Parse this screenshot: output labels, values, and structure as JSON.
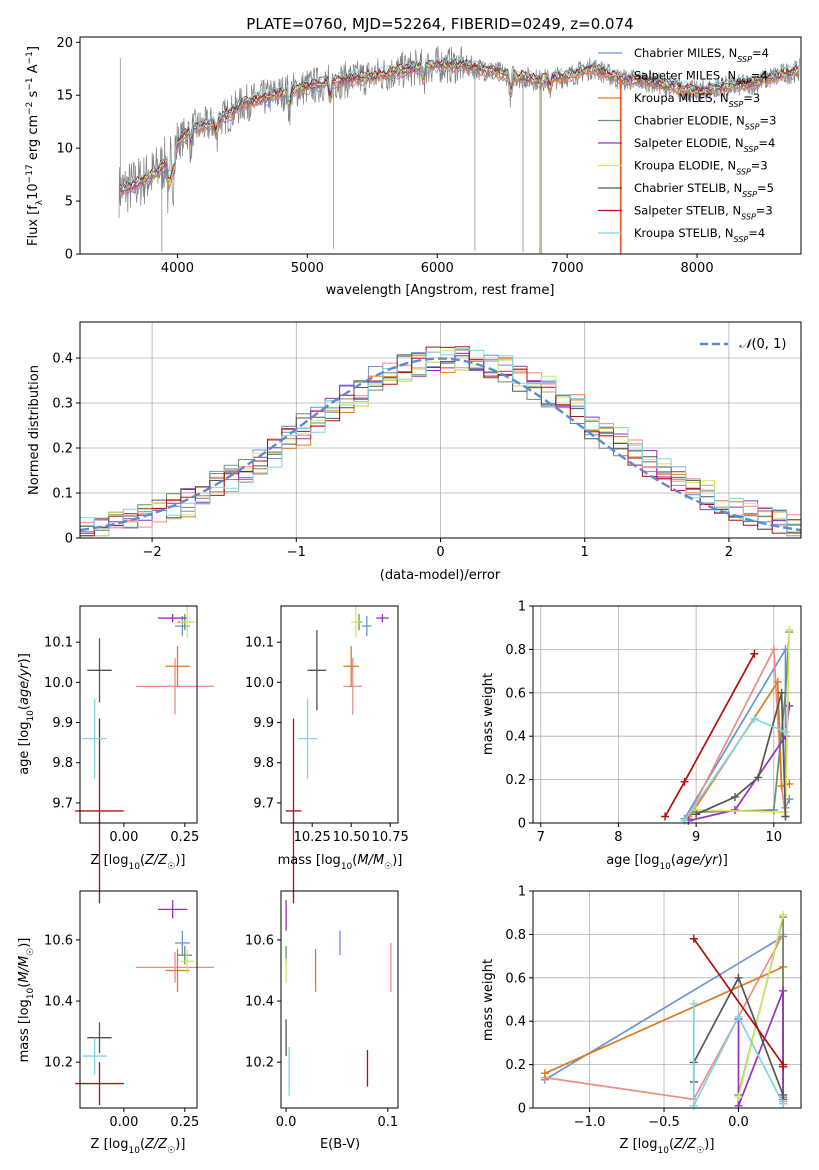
{
  "figure_title": "PLATE=0760, MJD=52264, FIBERID=0249, z=0.074",
  "series_styles": [
    {
      "name": "Chabrier MILES",
      "color": "#6a93d6"
    },
    {
      "name": "Salpeter MILES",
      "color": "#f08c84"
    },
    {
      "name": "Kroupa MILES",
      "color": "#e07a20"
    },
    {
      "name": "Chabrier ELODIE",
      "color": "#6a8f6a"
    },
    {
      "name": "Salpeter ELODIE",
      "color": "#9a2fc0"
    },
    {
      "name": "Kroupa ELODIE",
      "color": "#d4e866"
    },
    {
      "name": "Chabrier STELIB",
      "color": "#555555"
    },
    {
      "name": "Salpeter STELIB",
      "color": "#b01010"
    },
    {
      "name": "Kroupa STELIB",
      "color": "#7fd6e0"
    }
  ],
  "chart_data": [
    {
      "id": "spectrum",
      "type": "line",
      "xlabel": "wavelength [Angstrom, rest frame]",
      "ylabel": "Flux [fλ10⁻¹⁷ erg cm⁻² s⁻¹ A⁻¹]",
      "xlim": [
        3250,
        8800
      ],
      "ylim": [
        0,
        20.5
      ],
      "xticks": [
        4000,
        5000,
        6000,
        7000,
        8000
      ],
      "yticks": [
        0,
        5,
        10,
        15,
        20
      ],
      "data_color": "#808080",
      "continuum_x": [
        3550,
        3650,
        3800,
        3950,
        4000,
        4100,
        4250,
        4400,
        4500,
        4600,
        4800,
        5000,
        5200,
        5400,
        5600,
        5800,
        6000,
        6200,
        6400,
        6600,
        6800,
        7000,
        7200,
        7400,
        7600,
        7800,
        8000,
        8200,
        8400,
        8600,
        8800
      ],
      "continuum_y": [
        6,
        6.4,
        7.4,
        9,
        10.5,
        11.8,
        12.2,
        13.2,
        14.2,
        14.5,
        15.2,
        15.8,
        16.3,
        16.6,
        17,
        17.5,
        17.9,
        17.8,
        17.3,
        16.8,
        16.4,
        16.8,
        17.6,
        16.5,
        16.4,
        15.8,
        15.3,
        15.8,
        16,
        16.8,
        17.4
      ],
      "legend": [
        {
          "label": "Chabrier MILES, N",
          "sub": "SSP",
          "value": "=4",
          "color": "#6a93d6"
        },
        {
          "label": "Salpeter MILES, N",
          "sub": "SSP",
          "value": "=4",
          "color": "#f08c84"
        },
        {
          "label": "Kroupa MILES, N",
          "sub": "SSP",
          "value": "=3",
          "color": "#e07a20"
        },
        {
          "label": "Chabrier ELODIE, N",
          "sub": "SSP",
          "value": "=3",
          "color": "#6a8f6a"
        },
        {
          "label": "Salpeter ELODIE, N",
          "sub": "SSP",
          "value": "=4",
          "color": "#9a2fc0"
        },
        {
          "label": "Kroupa ELODIE, N",
          "sub": "SSP",
          "value": "=3",
          "color": "#d4e866"
        },
        {
          "label": "Chabrier STELIB, N",
          "sub": "SSP",
          "value": "=5",
          "color": "#555555"
        },
        {
          "label": "Salpeter STELIB, N",
          "sub": "SSP",
          "value": "=3",
          "color": "#b01010"
        },
        {
          "label": "Kroupa STELIB, N",
          "sub": "SSP",
          "value": "=4",
          "color": "#7fd6e0"
        }
      ]
    },
    {
      "id": "residuals",
      "type": "histogram",
      "xlabel": "(data-model)/error",
      "ylabel": "Normed distribution",
      "xlim": [
        -2.5,
        2.5
      ],
      "ylim": [
        0,
        0.48
      ],
      "xticks": [
        -2,
        -1,
        0,
        1,
        2
      ],
      "yticks": [
        0,
        0.1,
        0.2,
        0.3,
        0.4
      ],
      "bin_width": 0.1,
      "grid": true,
      "legend": [
        {
          "label": "(0, 1)",
          "color": "#6a93d6",
          "style": "dashed"
        }
      ]
    },
    {
      "id": "age_vs_Z",
      "type": "scatter",
      "xlabel": "Z [log10(Z/Z☉)]",
      "ylabel": "age  [log10(age/yr)]",
      "xlim": [
        -0.18,
        0.3
      ],
      "ylim": [
        9.65,
        10.19
      ],
      "xticks": [
        0,
        0.25
      ],
      "xticklabels": [
        "0.00",
        "0.25"
      ],
      "yticks": [
        9.7,
        9.8,
        9.9,
        10.0,
        10.1
      ],
      "points": [
        {
          "series": "Chabrier MILES",
          "x": 0.24,
          "y": 10.14,
          "xerr": 0.03,
          "yerr": 0.025
        },
        {
          "series": "Salpeter MILES",
          "x": 0.21,
          "y": 9.99,
          "xerr": 0.16,
          "yerr": 0.07
        },
        {
          "series": "Kroupa MILES",
          "x": 0.22,
          "y": 10.04,
          "xerr": 0.05,
          "yerr": 0.05
        },
        {
          "series": "Chabrier ELODIE",
          "x": 0.25,
          "y": 10.15,
          "xerr": 0.03,
          "yerr": 0.02
        },
        {
          "series": "Salpeter ELODIE",
          "x": 0.2,
          "y": 10.16,
          "xerr": 0.06,
          "yerr": 0.01
        },
        {
          "series": "Kroupa ELODIE",
          "x": 0.26,
          "y": 10.15,
          "xerr": 0.03,
          "yerr": 0.04
        },
        {
          "series": "Chabrier STELIB",
          "x": -0.1,
          "y": 10.03,
          "xerr": 0.05,
          "yerr": 0.08
        },
        {
          "series": "Salpeter STELIB",
          "x": -0.1,
          "y": 9.68,
          "xerr": 0.1,
          "yerr": 0.23
        },
        {
          "series": "Kroupa STELIB",
          "x": -0.12,
          "y": 9.86,
          "xerr": 0.05,
          "yerr": 0.1
        }
      ]
    },
    {
      "id": "age_vs_mass",
      "type": "scatter",
      "xlabel": "mass [log10(M/M☉)]",
      "ylabel": "",
      "xlim": [
        10.05,
        10.8
      ],
      "ylim": [
        9.65,
        10.19
      ],
      "xticks": [
        10.25,
        10.5,
        10.75
      ],
      "xticklabels": [
        "10.25",
        "10.50",
        "10.75"
      ],
      "yticks": [
        9.7,
        9.8,
        9.9,
        10.0,
        10.1
      ],
      "points": [
        {
          "series": "Chabrier MILES",
          "x": 10.6,
          "y": 10.14,
          "xerr": 0.03,
          "yerr": 0.025
        },
        {
          "series": "Salpeter MILES",
          "x": 10.51,
          "y": 9.99,
          "xerr": 0.06,
          "yerr": 0.07
        },
        {
          "series": "Kroupa MILES",
          "x": 10.5,
          "y": 10.04,
          "xerr": 0.05,
          "yerr": 0.05
        },
        {
          "series": "Chabrier ELODIE",
          "x": 10.55,
          "y": 10.15,
          "xerr": 0.02,
          "yerr": 0.02
        },
        {
          "series": "Salpeter ELODIE",
          "x": 10.7,
          "y": 10.16,
          "xerr": 0.04,
          "yerr": 0.01
        },
        {
          "series": "Kroupa ELODIE",
          "x": 10.53,
          "y": 10.15,
          "xerr": 0.03,
          "yerr": 0.04
        },
        {
          "series": "Chabrier STELIB",
          "x": 10.28,
          "y": 10.03,
          "xerr": 0.06,
          "yerr": 0.1
        },
        {
          "series": "Salpeter STELIB",
          "x": 10.13,
          "y": 9.68,
          "xerr": 0.05,
          "yerr": 0.23
        },
        {
          "series": "Kroupa STELIB",
          "x": 10.22,
          "y": 9.86,
          "xerr": 0.06,
          "yerr": 0.1
        }
      ]
    },
    {
      "id": "weight_vs_age",
      "type": "line",
      "xlabel": "age  [log10(age/yr)]",
      "ylabel": "mass weight",
      "xlim": [
        6.9,
        10.35
      ],
      "ylim": [
        0,
        1
      ],
      "xticks": [
        7,
        8,
        9,
        10
      ],
      "yticks": [
        0,
        0.2,
        0.4,
        0.6,
        0.8,
        1.0
      ],
      "grid": true,
      "series": [
        {
          "name": "Chabrier MILES",
          "x": [
            8.85,
            10.15,
            10.15,
            10.2
          ],
          "y": [
            0.02,
            0.8,
            0.07,
            0.11
          ]
        },
        {
          "name": "Salpeter MILES",
          "x": [
            8.9,
            10.0,
            10.1,
            10.15
          ],
          "y": [
            0.03,
            0.8,
            0.17,
            0.03
          ]
        },
        {
          "name": "Kroupa MILES",
          "x": [
            8.9,
            10.05,
            10.1,
            10.2
          ],
          "y": [
            0.02,
            0.65,
            0.17,
            0.18
          ]
        },
        {
          "name": "Chabrier ELODIE",
          "x": [
            9.0,
            10.0,
            10.15,
            10.2
          ],
          "y": [
            0.05,
            0.06,
            0.6,
            0.88
          ]
        },
        {
          "name": "Salpeter ELODIE",
          "x": [
            8.9,
            9.5,
            10.15,
            10.2
          ],
          "y": [
            0.01,
            0.06,
            0.4,
            0.54
          ]
        },
        {
          "name": "Kroupa ELODIE",
          "x": [
            9.0,
            10.15,
            10.2
          ],
          "y": [
            0.06,
            0.05,
            0.89
          ]
        },
        {
          "name": "Chabrier STELIB",
          "x": [
            9.0,
            9.5,
            9.8,
            10.1,
            10.15
          ],
          "y": [
            0.04,
            0.12,
            0.21,
            0.6,
            0.03
          ]
        },
        {
          "name": "Salpeter STELIB",
          "x": [
            8.6,
            8.85,
            9.75
          ],
          "y": [
            0.03,
            0.19,
            0.78
          ]
        },
        {
          "name": "Kroupa STELIB",
          "x": [
            8.85,
            9.75,
            10.15
          ],
          "y": [
            0.01,
            0.48,
            0.42
          ]
        }
      ]
    },
    {
      "id": "mass_vs_Z",
      "type": "scatter",
      "xlabel": "Z [log10(Z/Z☉)]",
      "ylabel": "mass [log10(M/M☉)]",
      "xlim": [
        -0.18,
        0.3
      ],
      "ylim": [
        10.05,
        10.76
      ],
      "xticks": [
        0,
        0.25
      ],
      "xticklabels": [
        "0.00",
        "0.25"
      ],
      "yticks": [
        10.2,
        10.4,
        10.6
      ],
      "points": [
        {
          "series": "Chabrier MILES",
          "x": 0.24,
          "y": 10.59,
          "xerr": 0.03,
          "yerr": 0.04
        },
        {
          "series": "Salpeter MILES",
          "x": 0.21,
          "y": 10.51,
          "xerr": 0.16,
          "yerr": 0.05
        },
        {
          "series": "Kroupa MILES",
          "x": 0.22,
          "y": 10.5,
          "xerr": 0.05,
          "yerr": 0.07
        },
        {
          "series": "Chabrier ELODIE",
          "x": 0.25,
          "y": 10.55,
          "xerr": 0.03,
          "yerr": 0.03
        },
        {
          "series": "Salpeter ELODIE",
          "x": 0.2,
          "y": 10.7,
          "xerr": 0.06,
          "yerr": 0.03
        },
        {
          "series": "Kroupa ELODIE",
          "x": 0.26,
          "y": 10.53,
          "xerr": 0.03,
          "yerr": 0.04
        },
        {
          "series": "Chabrier STELIB",
          "x": -0.1,
          "y": 10.28,
          "xerr": 0.05,
          "yerr": 0.05
        },
        {
          "series": "Salpeter STELIB",
          "x": -0.1,
          "y": 10.13,
          "xerr": 0.1,
          "yerr": 0.07
        },
        {
          "series": "Kroupa STELIB",
          "x": -0.12,
          "y": 10.22,
          "xerr": 0.05,
          "yerr": 0.06
        }
      ]
    },
    {
      "id": "mass_vs_ebv",
      "type": "scatter",
      "xlabel": "E(B-V)",
      "ylabel": "",
      "xlim": [
        -0.005,
        0.11
      ],
      "ylim": [
        10.05,
        10.76
      ],
      "xticks": [
        0,
        0.1
      ],
      "xticklabels": [
        "0.0",
        "0.1"
      ],
      "yticks": [
        10.2,
        10.4,
        10.6
      ],
      "points": [
        {
          "series": "Chabrier MILES",
          "x": 0.053,
          "y": 10.59,
          "xerr": 0,
          "yerr": 0.04
        },
        {
          "series": "Salpeter MILES",
          "x": 0.103,
          "y": 10.51,
          "xerr": 0,
          "yerr": 0.08
        },
        {
          "series": "Kroupa MILES",
          "x": 0.029,
          "y": 10.5,
          "xerr": 0,
          "yerr": 0.07
        },
        {
          "series": "Chabrier ELODIE",
          "x": 0.0,
          "y": 10.55,
          "xerr": 0,
          "yerr": 0.03
        },
        {
          "series": "Salpeter ELODIE",
          "x": 0.0,
          "y": 10.68,
          "xerr": 0,
          "yerr": 0.05
        },
        {
          "series": "Kroupa ELODIE",
          "x": 0.0,
          "y": 10.5,
          "xerr": 0,
          "yerr": 0.04
        },
        {
          "series": "Chabrier STELIB",
          "x": 0.0,
          "y": 10.28,
          "xerr": 0,
          "yerr": 0.06
        },
        {
          "series": "Salpeter STELIB",
          "x": 0.08,
          "y": 10.18,
          "xerr": 0,
          "yerr": 0.06
        },
        {
          "series": "Kroupa STELIB",
          "x": 0.003,
          "y": 10.17,
          "xerr": 0,
          "yerr": 0.08
        }
      ]
    },
    {
      "id": "weight_vs_Z",
      "type": "line",
      "xlabel": "Z [log10(Z/Z☉)]",
      "ylabel": "mass weight",
      "xlim": [
        -1.38,
        0.42
      ],
      "ylim": [
        0,
        1
      ],
      "xticks": [
        -1.0,
        -0.5,
        0.0
      ],
      "xticklabels": [
        "−1.0",
        "−0.5",
        "0.0"
      ],
      "yticks": [
        0,
        0.2,
        0.4,
        0.6,
        0.8,
        1.0
      ],
      "grid": true,
      "series": [
        {
          "name": "Chabrier MILES",
          "x": [
            -1.3,
            0.3,
            0.3
          ],
          "y": [
            0.13,
            0.79,
            0.02
          ]
        },
        {
          "name": "Salpeter MILES",
          "x": [
            -1.3,
            -0.3,
            0.3,
            0.3
          ],
          "y": [
            0.14,
            0.04,
            0.8,
            0.03
          ]
        },
        {
          "name": "Kroupa MILES",
          "x": [
            -1.3,
            0.3,
            0.3
          ],
          "y": [
            0.16,
            0.65,
            0.19
          ]
        },
        {
          "name": "Chabrier ELODIE",
          "x": [
            0.0,
            0.3,
            0.3
          ],
          "y": [
            0.06,
            0.88,
            0.05
          ]
        },
        {
          "name": "Salpeter ELODIE",
          "x": [
            0.0,
            0.0,
            0.3,
            0.3
          ],
          "y": [
            0.41,
            0.01,
            0.54,
            0.04
          ]
        },
        {
          "name": "Kroupa ELODIE",
          "x": [
            0.0,
            0.3
          ],
          "y": [
            0.05,
            0.89
          ]
        },
        {
          "name": "Chabrier STELIB",
          "x": [
            -0.3,
            -0.3,
            0.0,
            0.3
          ],
          "y": [
            0.12,
            0.21,
            0.6,
            0.06
          ]
        },
        {
          "name": "Salpeter STELIB",
          "x": [
            -0.3,
            0.3,
            0.3
          ],
          "y": [
            0.78,
            0.2,
            0.19
          ]
        },
        {
          "name": "Kroupa STELIB",
          "x": [
            -0.3,
            -0.3,
            0.0,
            0.3
          ],
          "y": [
            0.48,
            0.01,
            0.42,
            0.02
          ]
        }
      ]
    }
  ]
}
